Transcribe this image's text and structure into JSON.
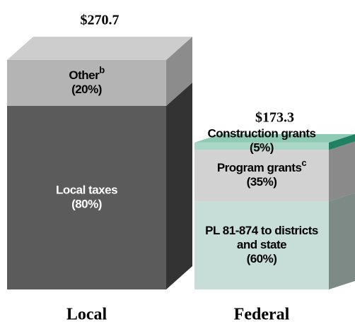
{
  "chart_data": {
    "type": "stacked-3d-bar",
    "bars": [
      {
        "category": "Local",
        "total": 270.7,
        "total_label": "$270.7",
        "segments": [
          {
            "name": [
              "Local taxes"
            ],
            "value": 80,
            "value_label": "(80%)",
            "color": "#5b5b5b",
            "side_color": "#333333",
            "text_color": "#ffffff"
          },
          {
            "name": [
              "Other"
            ],
            "note": "b",
            "value": 20,
            "value_label": "(20%)",
            "color": "#b4b4b4",
            "side_color": "#8c8c8c",
            "top_color": "#cdcdcd",
            "text_color": "#000000"
          }
        ]
      },
      {
        "category": "Federal",
        "total": 173.3,
        "total_label": "$173.3",
        "segments": [
          {
            "name": [
              "PL 81-874 to districts",
              "and state"
            ],
            "value": 60,
            "value_label": "(60%)",
            "color": "#c7ddd7",
            "side_color": "#7d8a86",
            "text_color": "#000000"
          },
          {
            "name": [
              "Program grants"
            ],
            "note": "c",
            "value": 35,
            "value_label": "(35%)",
            "color": "#d2d2d2",
            "side_color": "#8a8a8a",
            "text_color": "#000000"
          },
          {
            "name": [
              "Construction grants"
            ],
            "value": 5,
            "value_label": "(5%)",
            "color": "#a9d6c6",
            "side_color": "#1f8062",
            "top_color": "#8fcab4",
            "text_color": "#000000"
          }
        ]
      }
    ]
  }
}
